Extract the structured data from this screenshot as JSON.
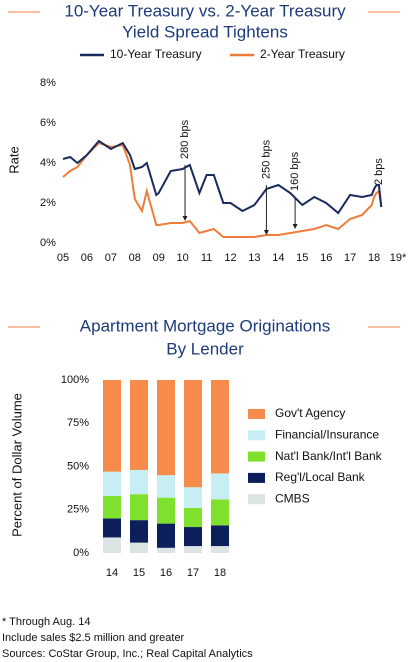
{
  "chart_data": [
    {
      "type": "line",
      "title": [
        "10-Year Treasury vs. 2-Year Treasury",
        "Yield Spread Tightens"
      ],
      "y_label": "Rate",
      "x": [
        5,
        5.3,
        5.6,
        6,
        6.5,
        7,
        7.5,
        7.8,
        8,
        8.3,
        8.5,
        8.9,
        9,
        9.5,
        10,
        10.3,
        10.7,
        11,
        11.3,
        11.7,
        12,
        12.5,
        13,
        13.5,
        14,
        14.5,
        15,
        15.5,
        16,
        16.5,
        17,
        17.5,
        17.9,
        18,
        18.1,
        18.2,
        18.3
      ],
      "series": [
        {
          "name": "10-Year Treasury",
          "color": "#1b2a5e",
          "values": [
            4.2,
            4.3,
            4.0,
            4.4,
            5.1,
            4.7,
            5.0,
            4.4,
            3.7,
            3.8,
            4.0,
            2.4,
            2.5,
            3.6,
            3.7,
            3.9,
            2.5,
            3.4,
            3.4,
            2.0,
            2.0,
            1.6,
            1.9,
            2.7,
            2.9,
            2.5,
            1.9,
            2.3,
            2.0,
            1.5,
            2.4,
            2.3,
            2.4,
            2.7,
            2.9,
            2.9,
            1.8
          ]
        },
        {
          "name": "2-Year Treasury",
          "color": "#ee7d3b",
          "values": [
            3.3,
            3.6,
            3.8,
            4.4,
            5.0,
            4.8,
            4.9,
            3.9,
            2.2,
            1.6,
            2.6,
            0.9,
            0.9,
            1.0,
            1.0,
            1.1,
            0.5,
            0.6,
            0.7,
            0.3,
            0.3,
            0.3,
            0.3,
            0.4,
            0.4,
            0.5,
            0.6,
            0.7,
            0.9,
            0.7,
            1.2,
            1.4,
            1.9,
            2.3,
            2.5,
            2.6,
            1.8
          ]
        }
      ],
      "annotations": [
        {
          "text": "280 bps",
          "x": 10.1,
          "from": 3.9,
          "to": 1.1
        },
        {
          "text": "250 bps",
          "x": 13.5,
          "from": 2.9,
          "to": 0.4
        },
        {
          "text": "160 bps",
          "x": 14.7,
          "from": 2.3,
          "to": 0.7
        },
        {
          "text": "2 bps",
          "x": 18.2,
          "from": 2.6,
          "to": 2.6
        }
      ],
      "xlim": [
        5,
        19
      ],
      "xticks": [
        {
          "value": 5,
          "label": "05"
        },
        {
          "value": 6,
          "label": "06"
        },
        {
          "value": 7,
          "label": "07"
        },
        {
          "value": 8,
          "label": "08"
        },
        {
          "value": 9,
          "label": "09"
        },
        10,
        11,
        12,
        13,
        14,
        15,
        16,
        17,
        18,
        {
          "value": 19,
          "label": "19*"
        }
      ],
      "ylim": [
        0,
        8
      ],
      "yticks": [
        {
          "value": 0,
          "label": "0%"
        },
        {
          "value": 2,
          "label": "2%"
        },
        {
          "value": 4,
          "label": "4%"
        },
        {
          "value": 6,
          "label": "6%"
        },
        {
          "value": 8,
          "label": "8%"
        }
      ]
    },
    {
      "type": "stacked_bar",
      "title": [
        "Apartment Mortgage Originations",
        "By Lender"
      ],
      "y_label": "Percent of Dollar Volume",
      "categories": [
        "14",
        "15",
        "16",
        "17",
        "18"
      ],
      "series": [
        {
          "name": "Gov't Agency",
          "color": "#f68b4c",
          "values": [
            53,
            52,
            55,
            62,
            54
          ]
        },
        {
          "name": "Financial/Insurance",
          "color": "#c7eff3",
          "values": [
            14,
            14,
            13,
            12,
            15
          ]
        },
        {
          "name": "Nat'l Bank/Int'l Bank",
          "color": "#7fe12e",
          "values": [
            13,
            15,
            15,
            11,
            15
          ]
        },
        {
          "name": "Reg'l/Local Bank",
          "color": "#0c1f5b",
          "values": [
            11,
            13,
            14,
            11,
            12
          ]
        },
        {
          "name": "CMBS",
          "color": "#dbe3e3",
          "values": [
            9,
            6,
            3,
            4,
            4
          ]
        }
      ],
      "ylim": [
        0,
        100
      ],
      "yticks": [
        {
          "value": 0,
          "label": "0%"
        },
        {
          "value": 25,
          "label": "25%"
        },
        {
          "value": 50,
          "label": "50%"
        },
        {
          "value": 75,
          "label": "75%"
        },
        {
          "value": 100,
          "label": "100%"
        }
      ]
    }
  ],
  "footnotes": [
    "* Through Aug. 14",
    "Include sales $2.5 million and greater",
    "Sources: CoStar Group, Inc.; Real Capital Analytics"
  ]
}
